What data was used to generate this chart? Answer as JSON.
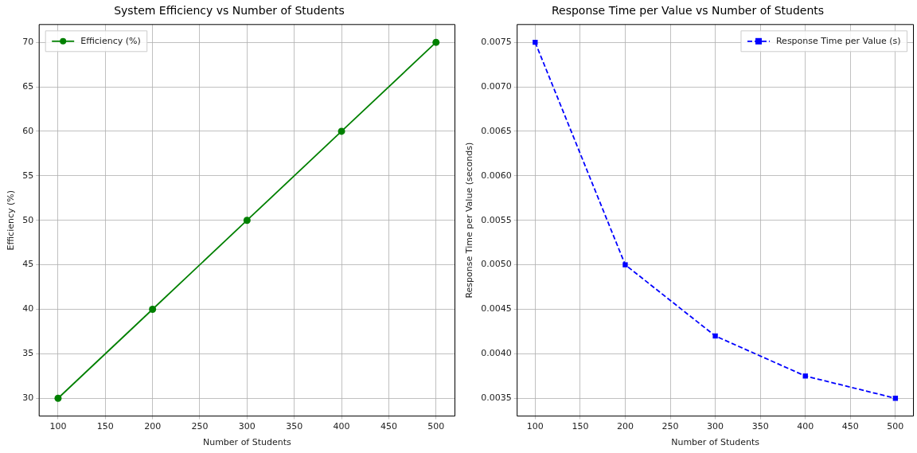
{
  "chart_data": [
    {
      "type": "line",
      "title": "System Efficiency vs Number of Students",
      "xlabel": "Number of Students",
      "ylabel": "Efficiency (%)",
      "x": [
        100,
        200,
        300,
        400,
        500
      ],
      "series": [
        {
          "name": "Efficiency (%)",
          "color": "#008000",
          "values": [
            30,
            40,
            50,
            60,
            70
          ]
        }
      ],
      "xlim": [
        80,
        520
      ],
      "xticks": [
        100,
        150,
        200,
        250,
        300,
        350,
        400,
        450,
        500
      ],
      "ylim": [
        28,
        72
      ],
      "yticks": [
        30,
        35,
        40,
        45,
        50,
        55,
        60,
        65,
        70
      ],
      "grid": true,
      "legend": "top left",
      "marker": "circle",
      "line_style": "solid"
    },
    {
      "type": "line",
      "title": "Response Time per Value vs Number of Students",
      "xlabel": "Number of Students",
      "ylabel": "Response Time per Value (seconds)",
      "x": [
        100,
        200,
        300,
        400,
        500
      ],
      "series": [
        {
          "name": "Response Time per Value (s)",
          "color": "#0000ff",
          "values": [
            0.0075,
            0.005,
            0.0042,
            0.00375,
            0.0035
          ]
        }
      ],
      "xlim": [
        80,
        520
      ],
      "xticks": [
        100,
        150,
        200,
        250,
        300,
        350,
        400,
        450,
        500
      ],
      "ylim": [
        0.0033,
        0.0077
      ],
      "yticks": [
        {
          "value": 0.0035,
          "label": "0.0035"
        },
        {
          "value": 0.004,
          "label": "0.0040"
        },
        {
          "value": 0.0045,
          "label": "0.0045"
        },
        {
          "value": 0.005,
          "label": "0.0050"
        },
        {
          "value": 0.0055,
          "label": "0.0055"
        },
        {
          "value": 0.006,
          "label": "0.0060"
        },
        {
          "value": 0.0065,
          "label": "0.0065"
        },
        {
          "value": 0.007,
          "label": "0.0070"
        },
        {
          "value": 0.0075,
          "label": "0.0075"
        }
      ],
      "grid": true,
      "legend": "top right",
      "marker": "square",
      "line_style": "dashed"
    }
  ]
}
